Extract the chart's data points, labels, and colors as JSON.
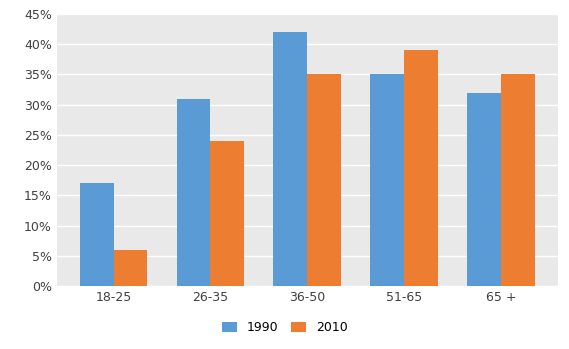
{
  "categories": [
    "18-25",
    "26-35",
    "36-50",
    "51-65",
    "65 +"
  ],
  "values_1990": [
    0.17,
    0.31,
    0.42,
    0.35,
    0.32
  ],
  "values_2010": [
    0.06,
    0.24,
    0.35,
    0.39,
    0.35
  ],
  "color_1990": "#5B9BD5",
  "color_2010": "#ED7D31",
  "ylim": [
    0,
    0.45
  ],
  "yticks": [
    0.0,
    0.05,
    0.1,
    0.15,
    0.2,
    0.25,
    0.3,
    0.35,
    0.4,
    0.45
  ],
  "legend_labels": [
    "1990",
    "2010"
  ],
  "bar_width": 0.35,
  "plot_bg_color": "#E9E9E9",
  "fig_bg_color": "#FFFFFF",
  "grid_color": "#FFFFFF"
}
